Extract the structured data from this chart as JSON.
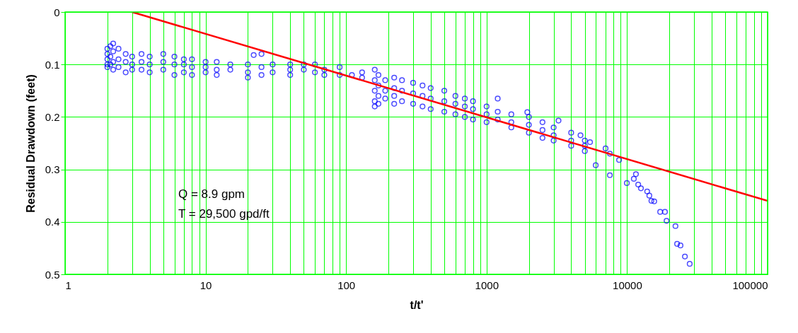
{
  "chart_data": {
    "type": "scatter",
    "xlabel": "t/t'",
    "ylabel": "Residual Drawdown (feet)",
    "log": "x",
    "grid": true,
    "xlim": [
      1,
      100000
    ],
    "ylim": [
      0.5,
      0
    ],
    "xticks": [
      1,
      {
        "value": 2,
        "label": null
      },
      {
        "value": 3,
        "label": null
      },
      {
        "value": 4,
        "label": null
      },
      {
        "value": 5,
        "label": null
      },
      {
        "value": 6,
        "label": null
      },
      {
        "value": 7,
        "label": null
      },
      {
        "value": 8,
        "label": null
      },
      {
        "value": 9,
        "label": null
      },
      10,
      {
        "value": 20,
        "label": null
      },
      {
        "value": 30,
        "label": null
      },
      {
        "value": 40,
        "label": null
      },
      {
        "value": 50,
        "label": null
      },
      {
        "value": 60,
        "label": null
      },
      {
        "value": 70,
        "label": null
      },
      {
        "value": 80,
        "label": null
      },
      {
        "value": 90,
        "label": null
      },
      100,
      {
        "value": 200,
        "label": null
      },
      {
        "value": 300,
        "label": null
      },
      {
        "value": 400,
        "label": null
      },
      {
        "value": 500,
        "label": null
      },
      {
        "value": 600,
        "label": null
      },
      {
        "value": 700,
        "label": null
      },
      {
        "value": 800,
        "label": null
      },
      {
        "value": 900,
        "label": null
      },
      1000,
      {
        "value": 2000,
        "label": null
      },
      {
        "value": 3000,
        "label": null
      },
      {
        "value": 4000,
        "label": null
      },
      {
        "value": 5000,
        "label": null
      },
      {
        "value": 6000,
        "label": null
      },
      {
        "value": 7000,
        "label": null
      },
      {
        "value": 8000,
        "label": null
      },
      {
        "value": 9000,
        "label": null
      },
      10000,
      {
        "value": 20000,
        "label": null
      },
      {
        "value": 30000,
        "label": null
      },
      {
        "value": 40000,
        "label": null
      },
      {
        "value": 50000,
        "label": null
      },
      {
        "value": 60000,
        "label": null
      },
      {
        "value": 70000,
        "label": null
      },
      {
        "value": 80000,
        "label": null
      },
      {
        "value": 90000,
        "label": null
      },
      100000
    ],
    "yticks": [
      0,
      0.1,
      0.2,
      0.3,
      0.4,
      0.5
    ],
    "annotations": [
      "Q = 8.9 gpm",
      "T = 29,500 gpd/ft"
    ],
    "series": [
      {
        "type": "scatter",
        "color": "#0000ff",
        "marker": "circle",
        "x": [
          2.0,
          2.0,
          2.0,
          2.0,
          2.0,
          2.1,
          2.1,
          2.1,
          2.2,
          2.2,
          2.2,
          2.2,
          2.4,
          2.4,
          2.4,
          2.7,
          2.7,
          2.7,
          3,
          3,
          3,
          3.5,
          3.5,
          3.5,
          4,
          4,
          4,
          5,
          5,
          5,
          6,
          6,
          6,
          7,
          7,
          7,
          8,
          8,
          8,
          10,
          10,
          10,
          12,
          12,
          12,
          15,
          15,
          20,
          20,
          20,
          22,
          25,
          25,
          25,
          30,
          30,
          40,
          40,
          40,
          50,
          50,
          60,
          60,
          70,
          70,
          90,
          90,
          110,
          130,
          130,
          160,
          160,
          160,
          160,
          160,
          170,
          170,
          170,
          170,
          190,
          190,
          190,
          220,
          220,
          220,
          220,
          250,
          250,
          250,
          300,
          300,
          300,
          350,
          350,
          350,
          400,
          400,
          400,
          500,
          500,
          500,
          600,
          600,
          600,
          700,
          700,
          700,
          800,
          800,
          800,
          1000,
          1000,
          1000,
          1200,
          1200,
          1200,
          1500,
          1500,
          1500,
          1950,
          2000,
          2000,
          2000,
          2500,
          2500,
          2500,
          3000,
          3000,
          3000,
          3250,
          4000,
          4000,
          4000,
          4660,
          5000,
          5000,
          5000,
          5450,
          5980,
          7030,
          7540,
          7540,
          8770,
          9960,
          11170,
          11560,
          12000,
          12550,
          13900,
          14400,
          14900,
          15600,
          17200,
          18600,
          19100,
          22100,
          22700,
          24000,
          25800,
          27900
        ],
        "values": [
          0.07,
          0.09,
          0.105,
          0.08,
          0.1,
          0.065,
          0.085,
          0.1,
          0.06,
          0.075,
          0.095,
          0.11,
          0.07,
          0.09,
          0.105,
          0.08,
          0.095,
          0.115,
          0.085,
          0.1,
          0.11,
          0.08,
          0.095,
          0.11,
          0.085,
          0.1,
          0.115,
          0.08,
          0.095,
          0.11,
          0.085,
          0.1,
          0.12,
          0.09,
          0.1,
          0.115,
          0.09,
          0.105,
          0.12,
          0.095,
          0.105,
          0.115,
          0.095,
          0.11,
          0.12,
          0.1,
          0.11,
          0.1,
          0.115,
          0.125,
          0.082,
          0.08,
          0.105,
          0.12,
          0.1,
          0.115,
          0.1,
          0.11,
          0.12,
          0.1,
          0.11,
          0.1,
          0.115,
          0.11,
          0.12,
          0.105,
          0.12,
          0.12,
          0.115,
          0.125,
          0.11,
          0.13,
          0.15,
          0.17,
          0.18,
          0.12,
          0.14,
          0.16,
          0.175,
          0.13,
          0.15,
          0.165,
          0.125,
          0.145,
          0.16,
          0.175,
          0.13,
          0.15,
          0.17,
          0.135,
          0.155,
          0.175,
          0.14,
          0.16,
          0.18,
          0.145,
          0.165,
          0.185,
          0.15,
          0.17,
          0.19,
          0.16,
          0.175,
          0.195,
          0.165,
          0.18,
          0.2,
          0.17,
          0.185,
          0.205,
          0.18,
          0.195,
          0.21,
          0.165,
          0.19,
          0.205,
          0.195,
          0.21,
          0.22,
          0.191,
          0.2,
          0.215,
          0.23,
          0.21,
          0.225,
          0.24,
          0.22,
          0.235,
          0.245,
          0.207,
          0.23,
          0.245,
          0.255,
          0.235,
          0.245,
          0.255,
          0.265,
          0.248,
          0.292,
          0.26,
          0.27,
          0.311,
          0.282,
          0.326,
          0.318,
          0.309,
          0.329,
          0.336,
          0.342,
          0.35,
          0.36,
          0.361,
          0.381,
          0.381,
          0.398,
          0.408,
          0.442,
          0.445,
          0.466,
          0.48
        ]
      },
      {
        "type": "line",
        "color": "#ff0000",
        "marker": "none",
        "line_style": "solid",
        "x": [
          3,
          100000
        ],
        "values": [
          0,
          0.36
        ]
      }
    ]
  }
}
